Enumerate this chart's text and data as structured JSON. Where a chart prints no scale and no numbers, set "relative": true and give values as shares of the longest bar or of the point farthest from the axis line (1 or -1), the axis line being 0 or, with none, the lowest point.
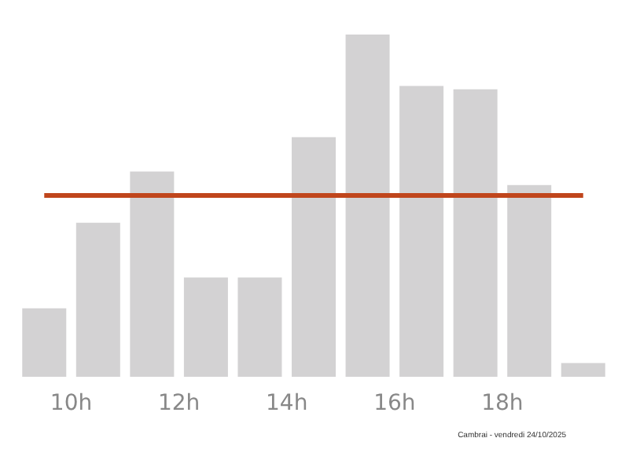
{
  "chart_data": {
    "type": "bar",
    "relative": true,
    "x": [
      9.5,
      10.5,
      11.5,
      12.5,
      13.5,
      14.5,
      15.5,
      16.5,
      17.5,
      18.5,
      19.5
    ],
    "values": [
      0.2,
      0.45,
      0.6,
      0.29,
      0.29,
      0.7,
      1,
      0.85,
      0.84,
      0.56,
      0.04
    ],
    "color": "#d3d2d3",
    "xlim": [
      9,
      20
    ],
    "xticks": [
      {
        "value": 10,
        "label": "10h"
      },
      {
        "value": 12,
        "label": "12h"
      },
      {
        "value": 14,
        "label": "14h"
      },
      {
        "value": 16,
        "label": "16h"
      },
      {
        "value": 18,
        "label": "18h"
      }
    ],
    "ref_lines": [
      {
        "axis": "y",
        "value": 0.53,
        "color": "#c0461c"
      }
    ],
    "annotations": [
      "Cambrai - vendredi 24/10/2025"
    ]
  }
}
